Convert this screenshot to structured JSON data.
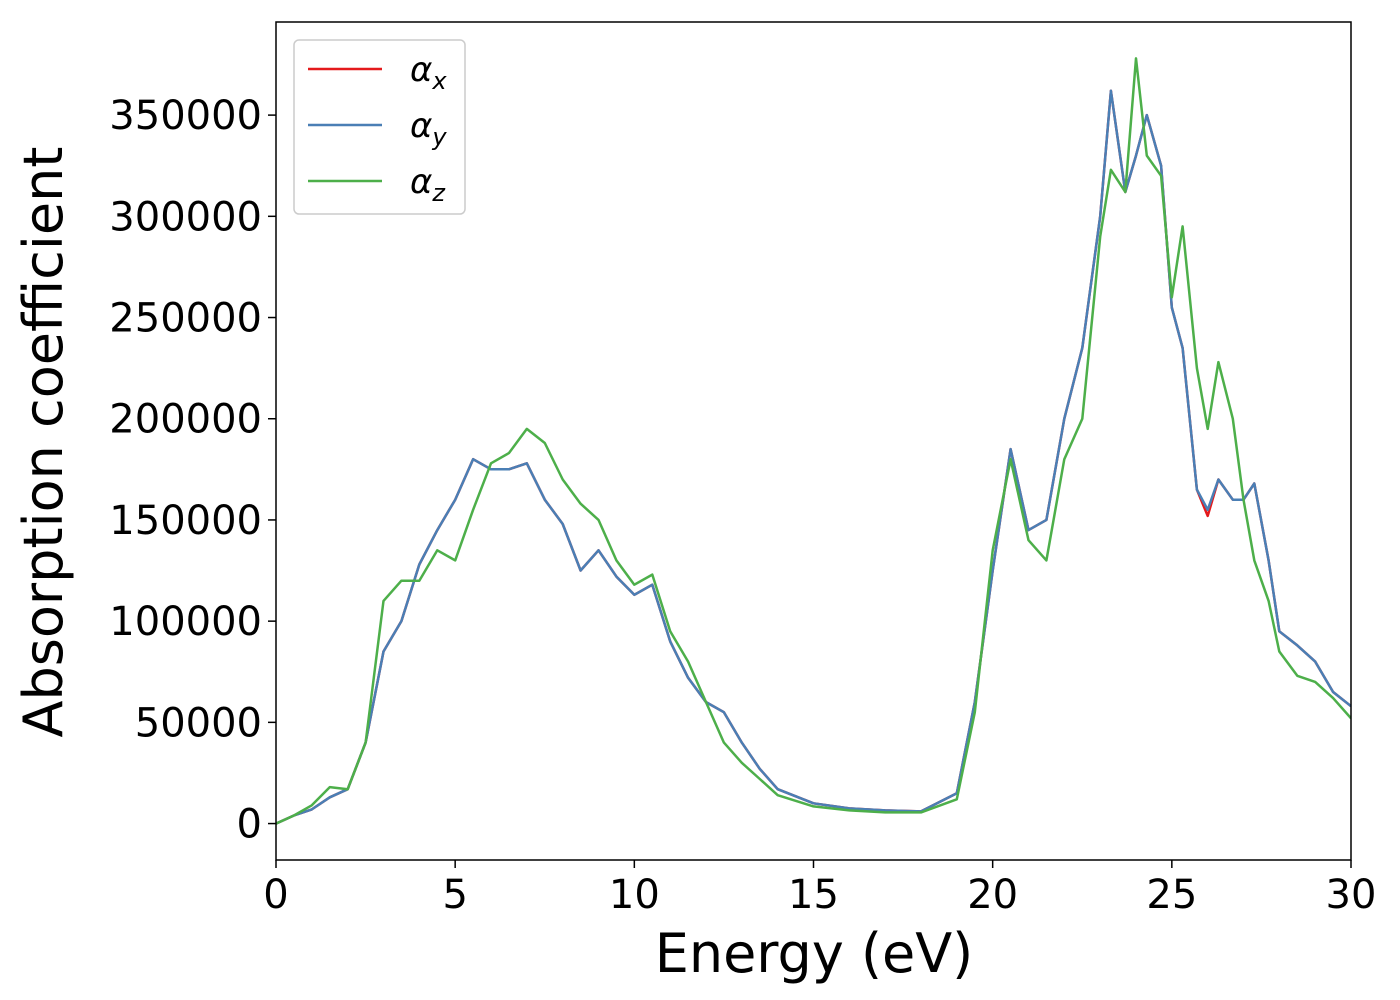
{
  "chart_data": {
    "type": "line",
    "xlabel": "Energy (eV)",
    "ylabel": "Absorption coefficient",
    "x": [
      0,
      0.5,
      1,
      1.5,
      2,
      2.5,
      3,
      3.5,
      4,
      4.5,
      5,
      5.5,
      6,
      6.5,
      7,
      7.5,
      8,
      8.5,
      9,
      9.5,
      10,
      10.5,
      11,
      11.5,
      12,
      12.5,
      13,
      13.5,
      14,
      15,
      16,
      17,
      18,
      19,
      19.5,
      20,
      20.5,
      21,
      21.5,
      22,
      22.5,
      23,
      23.3,
      23.7,
      24,
      24.3,
      24.7,
      25,
      25.3,
      25.7,
      26,
      26.3,
      26.7,
      27,
      27.3,
      27.7,
      28,
      28.5,
      29,
      29.5,
      30
    ],
    "series": [
      {
        "name": "αx",
        "color": "#e41a1c",
        "values": [
          0,
          4000,
          7000,
          13000,
          17000,
          40000,
          85000,
          100000,
          128000,
          145000,
          160000,
          180000,
          175000,
          175000,
          178000,
          160000,
          148000,
          125000,
          135000,
          122000,
          113000,
          118000,
          90000,
          72000,
          60000,
          55000,
          40000,
          27000,
          17000,
          10000,
          7500,
          6500,
          6000,
          15000,
          60000,
          125000,
          185000,
          145000,
          150000,
          200000,
          235000,
          300000,
          362000,
          312000,
          330000,
          350000,
          325000,
          255000,
          235000,
          165000,
          152000,
          170000,
          160000,
          160000,
          168000,
          130000,
          95000,
          88000,
          80000,
          65000,
          58000
        ]
      },
      {
        "name": "αy",
        "color": "#4a7fb5",
        "values": [
          0,
          4000,
          7000,
          13000,
          17000,
          40000,
          85000,
          100000,
          128000,
          145000,
          160000,
          180000,
          175000,
          175000,
          178000,
          160000,
          148000,
          125000,
          135000,
          122000,
          113000,
          118000,
          90000,
          72000,
          60000,
          55000,
          40000,
          27000,
          17000,
          10000,
          7500,
          6500,
          6000,
          15000,
          60000,
          125000,
          185000,
          145000,
          150000,
          200000,
          235000,
          300000,
          362000,
          312000,
          330000,
          350000,
          325000,
          255000,
          235000,
          165000,
          155000,
          170000,
          160000,
          160000,
          168000,
          130000,
          95000,
          88000,
          80000,
          65000,
          58000
        ]
      },
      {
        "name": "αz",
        "color": "#4daf4a",
        "values": [
          0,
          4000,
          9000,
          18000,
          17000,
          40000,
          110000,
          120000,
          120000,
          135000,
          130000,
          155000,
          178000,
          183000,
          195000,
          188000,
          170000,
          158000,
          150000,
          130000,
          118000,
          123000,
          95000,
          80000,
          60000,
          40000,
          30000,
          22000,
          14000,
          8500,
          6500,
          5500,
          5500,
          12000,
          55000,
          135000,
          180000,
          140000,
          130000,
          180000,
          200000,
          290000,
          323000,
          312000,
          378000,
          330000,
          320000,
          260000,
          295000,
          225000,
          195000,
          228000,
          200000,
          160000,
          130000,
          110000,
          85000,
          73000,
          70000,
          62000,
          52000
        ]
      }
    ],
    "xlim": [
      0,
      30
    ],
    "xticks": [
      0,
      5,
      10,
      15,
      20,
      25,
      30
    ],
    "ylim": [
      -18000,
      396000
    ],
    "yticks": [
      0,
      50000,
      100000,
      150000,
      200000,
      250000,
      300000,
      350000
    ],
    "legend": "upper left",
    "grid": false
  }
}
